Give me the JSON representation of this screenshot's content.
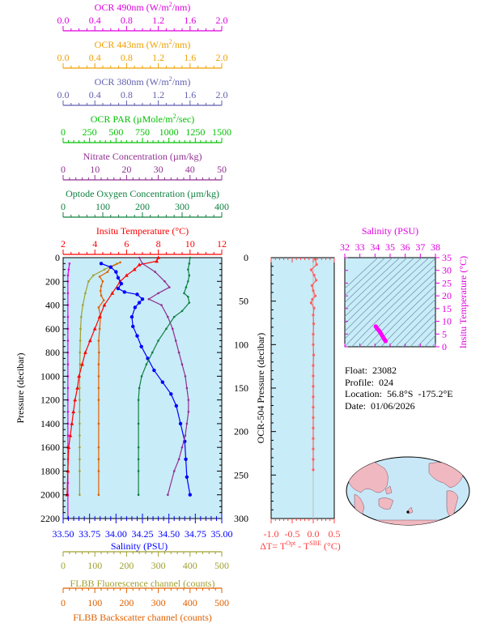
{
  "chart_data": [
    {
      "type": "line",
      "panel": "main profile",
      "y_axis": {
        "label": "Pressure (decibar)",
        "range": [
          0,
          2200
        ],
        "inverted": true,
        "ticks": [
          0,
          200,
          400,
          600,
          800,
          1000,
          1200,
          1400,
          1600,
          1800,
          2000,
          2200
        ],
        "tick_labels": [
          "0",
          "200",
          "400",
          "600",
          "800",
          "1000",
          "1200",
          "1400",
          "1600",
          "1800",
          "2000",
          "2200"
        ]
      },
      "axes": [
        {
          "key": "ocr490",
          "title_pre": "OCR 490nm (W/m",
          "sup": "2",
          "title_post": "/nm)",
          "color": "#e000e0",
          "min": 0,
          "max": 2.0,
          "tick_labels": [
            "0.0",
            "0.4",
            "0.8",
            "1.2",
            "1.6",
            "2.0"
          ],
          "minor": 4
        },
        {
          "key": "ocr443",
          "title_pre": "OCR 443nm (W/m",
          "sup": "2",
          "title_post": "/nm)",
          "color": "#f0a000",
          "min": 0,
          "max": 2.0,
          "tick_labels": [
            "0.0",
            "0.4",
            "0.8",
            "1.2",
            "1.6",
            "2.0"
          ],
          "minor": 4
        },
        {
          "key": "ocr380",
          "title_pre": "OCR 380nm (W/m",
          "sup": "2",
          "title_post": "/nm)",
          "color": "#6060b0",
          "min": 0,
          "max": 2.0,
          "tick_labels": [
            "0.0",
            "0.4",
            "0.8",
            "1.2",
            "1.6",
            "2.0"
          ],
          "minor": 4
        },
        {
          "key": "par",
          "title_pre": "OCR PAR (µMole/m",
          "sup": "2",
          "title_post": "/sec)",
          "color": "#00c000",
          "min": 0,
          "max": 1500,
          "tick_labels": [
            "0",
            "250",
            "500",
            "750",
            "1000",
            "1250",
            "1500"
          ],
          "minor": 5
        },
        {
          "key": "nitrate",
          "title_pre": "Nitrate Concentration (µm/kg)",
          "sup": "",
          "title_post": "",
          "color": "#903090",
          "min": 0,
          "max": 50,
          "tick_labels": [
            "0",
            "10",
            "20",
            "30",
            "40",
            "50"
          ],
          "minor": 5
        },
        {
          "key": "oxygen",
          "title_pre": "Optode Oxygen Concentration (µm/kg)",
          "sup": "",
          "title_post": "",
          "color": "#108040",
          "min": 0,
          "max": 400,
          "tick_labels": [
            "0",
            "100",
            "200",
            "300",
            "400"
          ],
          "minor": 5
        },
        {
          "key": "temp",
          "title_pre": "Insitu Temperature (°C)",
          "sup": "",
          "title_post": "",
          "color": "#ff0000",
          "min": 2,
          "max": 12,
          "tick_labels": [
            "2",
            "4",
            "6",
            "8",
            "10",
            "12"
          ],
          "minor": 4
        }
      ],
      "bottom_axes": [
        {
          "key": "salinity",
          "title": "Salinity (PSU)",
          "color": "#0000ff",
          "min": 33.5,
          "max": 35.0,
          "tick_labels": [
            "33.50",
            "33.75",
            "34.00",
            "34.25",
            "34.50",
            "34.75",
            "35.00"
          ],
          "minor": 5
        },
        {
          "key": "fluor",
          "title": "FLBB Fluorescence channel (counts)",
          "color": "#a0a030",
          "min": 0,
          "max": 500,
          "tick_labels": [
            "0",
            "100",
            "200",
            "300",
            "400",
            "500"
          ],
          "minor": 5
        },
        {
          "key": "bbp",
          "title": "FLBB Backscatter channel (counts)",
          "color": "#e06000",
          "min": 0,
          "max": 500,
          "tick_labels": [
            "0",
            "100",
            "200",
            "300",
            "400",
            "500"
          ],
          "minor": 5
        }
      ],
      "series": [
        {
          "key": "ocr490",
          "color": "#e000e0",
          "marker": "point",
          "x": [
            0.08,
            0.07,
            0.06,
            0.06,
            0.06,
            0.06,
            0.06,
            0.06,
            0.06,
            0.06,
            0.06,
            0.06,
            0.06,
            0.06,
            0.06,
            0.06,
            0.06,
            0.06,
            0.06,
            0.06,
            0.06,
            0.06,
            0.06
          ],
          "y": [
            50,
            100,
            150,
            200,
            300,
            400,
            500,
            600,
            700,
            800,
            900,
            1000,
            1100,
            1200,
            1300,
            1400,
            1500,
            1600,
            1700,
            1800,
            1900,
            2000,
            2200
          ]
        },
        {
          "key": "fluor",
          "color": "#a0a030",
          "marker": "point",
          "x": [
            170,
            130,
            95,
            80,
            70,
            62,
            57,
            55,
            54,
            53,
            53,
            52,
            52,
            52,
            52,
            52,
            52,
            52,
            52,
            52,
            52
          ],
          "y": [
            50,
            100,
            150,
            200,
            300,
            400,
            500,
            600,
            700,
            800,
            900,
            1000,
            1100,
            1200,
            1300,
            1400,
            1500,
            1600,
            1700,
            1800,
            2000
          ]
        },
        {
          "key": "bbp",
          "color": "#e06000",
          "marker": "point",
          "x": [
            180,
            150,
            140,
            115,
            125,
            120,
            118,
            120,
            128,
            112,
            118,
            115,
            112,
            113,
            112,
            112,
            112,
            112,
            112,
            112,
            112,
            112,
            112
          ],
          "y": [
            40,
            80,
            120,
            160,
            200,
            240,
            280,
            320,
            360,
            420,
            500,
            600,
            700,
            800,
            900,
            1000,
            1100,
            1200,
            1400,
            1600,
            1700,
            1800,
            2000
          ]
        },
        {
          "key": "temp",
          "color": "#ff0000",
          "marker": "tri",
          "x": [
            8.0,
            7.9,
            6.8,
            6.5,
            6.0,
            5.6,
            5.1,
            4.6,
            4.3,
            4.0,
            3.7,
            3.4,
            3.2,
            3.0,
            2.9,
            2.75,
            2.65,
            2.55,
            2.45,
            2.35,
            2.3,
            2.25
          ],
          "y": [
            0,
            30,
            60,
            100,
            150,
            200,
            300,
            400,
            500,
            600,
            700,
            800,
            900,
            1000,
            1100,
            1200,
            1300,
            1400,
            1500,
            1600,
            1800,
            2000
          ]
        },
        {
          "key": "salinity",
          "color": "#0000ff",
          "marker": "dot",
          "x": [
            33.86,
            33.95,
            34.0,
            34.02,
            34.05,
            34.02,
            34.08,
            34.2,
            34.25,
            34.22,
            34.18,
            34.15,
            34.16,
            34.2,
            34.24,
            34.3,
            34.36,
            34.44,
            34.52,
            34.57,
            34.61,
            34.65,
            34.66,
            34.67,
            34.7
          ],
          "y": [
            50,
            80,
            120,
            170,
            220,
            260,
            290,
            310,
            350,
            380,
            420,
            500,
            580,
            660,
            750,
            850,
            950,
            1050,
            1150,
            1250,
            1400,
            1550,
            1700,
            1850,
            2000
          ]
        },
        {
          "key": "nitrate",
          "color": "#903090",
          "marker": "point",
          "x": [
            24.0,
            25.0,
            29.0,
            32.0,
            33.5,
            30.0,
            27.0,
            31.0,
            33.0,
            34.5,
            35.5,
            36.5,
            37.5,
            38.5,
            39.0,
            39.5,
            39.5,
            39.0,
            38.5,
            37.5,
            36.5,
            35.0,
            33.0
          ],
          "y": [
            0,
            50,
            120,
            200,
            250,
            300,
            350,
            400,
            500,
            600,
            700,
            800,
            900,
            1000,
            1100,
            1200,
            1300,
            1400,
            1500,
            1600,
            1700,
            1800,
            2000
          ]
        },
        {
          "key": "oxygen",
          "color": "#108040",
          "marker": "point",
          "x": [
            320,
            318,
            315,
            318,
            315,
            310,
            305,
            315,
            318,
            300,
            280,
            260,
            240,
            225,
            210,
            198,
            192,
            190,
            190,
            190,
            190,
            190,
            190
          ],
          "y": [
            0,
            50,
            100,
            150,
            200,
            250,
            300,
            330,
            380,
            450,
            500,
            600,
            700,
            800,
            900,
            1000,
            1100,
            1200,
            1400,
            1600,
            1700,
            1800,
            2000
          ]
        }
      ]
    },
    {
      "type": "line",
      "panel": "temperature difference",
      "y_label": "OCR-504 Pressure (decibar)",
      "y_range": [
        0,
        300
      ],
      "y_tick_labels": [
        "0",
        "50",
        "100",
        "150",
        "200",
        "250",
        "300"
      ],
      "x_range": [
        -1.0,
        0.5
      ],
      "x_tick_labels": [
        "-1.0",
        "-0.5",
        "0.0",
        "0.5"
      ],
      "x_label_parts": [
        "ΔT= T",
        "Opt",
        " - T",
        "SBE",
        " (°C)"
      ],
      "color": "#ff6060",
      "x": [
        0.05,
        0.08,
        -0.05,
        0.02,
        0.07,
        -0.03,
        0.0,
        0.05,
        -0.02,
        -0.05,
        0.02,
        0.0,
        0.01,
        0.0,
        0.0,
        0.01,
        0.0,
        0.0,
        0.0,
        0.0,
        0.0,
        0.0,
        0.0,
        0.0,
        0.0,
        0.0,
        0.0
      ],
      "y": [
        2,
        8,
        14,
        20,
        26,
        32,
        38,
        44,
        48,
        52,
        58,
        66,
        76,
        88,
        100,
        112,
        124,
        136,
        148,
        160,
        172,
        184,
        196,
        208,
        220,
        232,
        244
      ]
    },
    {
      "type": "scatter",
      "panel": "T-S diagram",
      "x_label": "Salinity (PSU)",
      "x_range": [
        32,
        38
      ],
      "x_tick_labels": [
        "32",
        "33",
        "34",
        "35",
        "36",
        "37",
        "38"
      ],
      "y_label": "Insitu Temperature (°C)",
      "y_range": [
        0,
        35
      ],
      "y_tick_labels": [
        "0",
        "5",
        "10",
        "15",
        "20",
        "25",
        "30",
        "35"
      ],
      "color": "#ff00ff",
      "x": [
        34.05,
        34.1,
        34.15,
        34.25,
        34.3,
        34.35,
        34.4,
        34.45,
        34.5,
        34.55,
        34.6,
        34.65,
        34.68,
        34.7
      ],
      "y": [
        8.0,
        7.6,
        7.0,
        6.5,
        6.0,
        5.6,
        5.1,
        4.6,
        4.1,
        3.6,
        3.1,
        2.7,
        2.4,
        2.2
      ]
    }
  ],
  "float_info": {
    "float": "Float:  23082",
    "profile": "Profile:  024",
    "location": "Location:  56.8°S  -175.2°E",
    "date": "Date:  01/06/2026"
  },
  "colors": {
    "plot_bg": "#c8ecf8",
    "ocean": "#c8e8f8",
    "land": "#f0b8c0"
  }
}
